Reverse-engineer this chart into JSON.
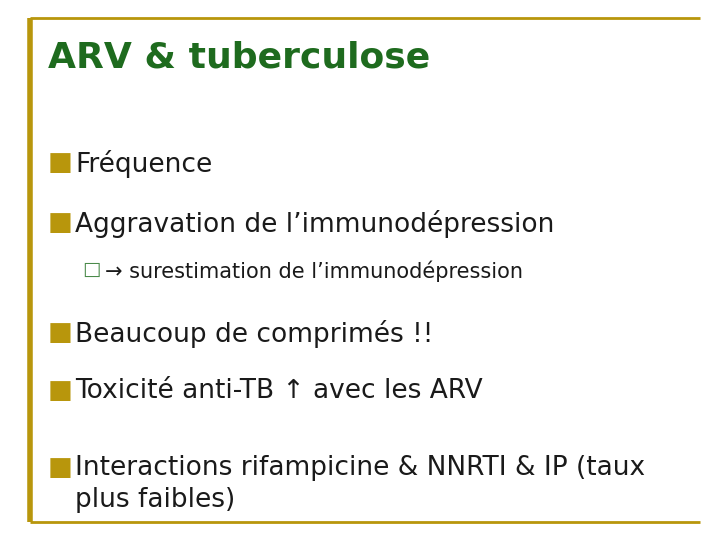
{
  "title": "ARV & tuberculose",
  "title_color": "#1E6B1E",
  "title_fontsize": 26,
  "title_bold": true,
  "background_color": "#FFFFFF",
  "border_color": "#B8960C",
  "bullet_color": "#B8960C",
  "sub_bullet_color": "#4A8A4A",
  "text_color": "#1A1A1A",
  "bullet_items": [
    {
      "level": 1,
      "text": "Fréquence"
    },
    {
      "level": 1,
      "text": "Aggravation de l’immunodépression"
    },
    {
      "level": 2,
      "text": "→ surestimation de l’immunodépression"
    },
    {
      "level": 1,
      "text": "Beaucoup de comprimés !!"
    },
    {
      "level": 1,
      "text": "Toxicité anti-TB ↑ avec les ARV"
    },
    {
      "level": 1,
      "text": "Interactions rifampicine & NNRTI & IP (taux\nplus faibles)"
    }
  ],
  "bullet_fontsize": 19,
  "sub_bullet_fontsize": 15,
  "main_bullet_marker": "■",
  "sub_bullet_marker": "□"
}
